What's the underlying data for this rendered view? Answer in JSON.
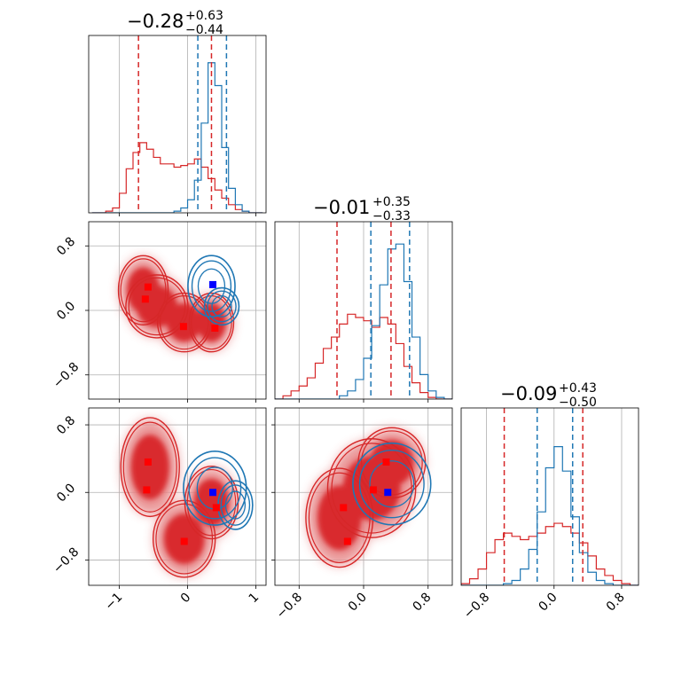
{
  "chart_data": {
    "type": "corner",
    "parameters": 3,
    "colors": {
      "red": "#d62728",
      "blue": "#1f77b4",
      "red_fill_light": "#e88b8c",
      "red_fill_dark": "#d92b2f",
      "grid": "#b0b0b0",
      "marker_red": "#ff0000",
      "marker_blue": "#0000ff"
    },
    "titles": [
      {
        "main": "−0.28",
        "plus": "+0.63",
        "minus": "−0.44"
      },
      {
        "main": "−0.01",
        "plus": "+0.35",
        "minus": "−0.33"
      },
      {
        "main": "−0.09",
        "plus": "+0.43",
        "minus": "−0.50"
      }
    ],
    "axes": [
      {
        "range": [
          -1.45,
          1.15
        ],
        "ticks": [
          -1,
          0,
          1
        ],
        "tick_labels": [
          "−1",
          "0",
          "1"
        ]
      },
      {
        "range": [
          -1.1,
          1.1
        ],
        "ticks": [
          -0.8,
          0.0,
          0.8
        ],
        "tick_labels": [
          "−0.8",
          "0.0",
          "0.8"
        ]
      },
      {
        "range": [
          -1.1,
          1.0
        ],
        "ticks": [
          -0.8,
          0.0,
          0.8
        ],
        "tick_labels": [
          "−0.8",
          "0.0",
          "0.8"
        ]
      }
    ],
    "quantile_lines": {
      "red": [
        [
          -0.72,
          0.35
        ],
        [
          -0.33,
          0.34
        ],
        [
          -0.59,
          0.34
        ]
      ],
      "blue": [
        [
          0.15,
          0.57
        ],
        [
          0.09,
          0.57
        ],
        [
          -0.2,
          0.22
        ]
      ]
    },
    "markers": {
      "p1_p0": {
        "red": [
          [
            -0.58,
            0.29
          ],
          [
            -0.62,
            0.14
          ],
          [
            -0.06,
            -0.2
          ],
          [
            0.4,
            -0.22
          ]
        ],
        "blue": [
          [
            0.37,
            0.32
          ]
        ]
      },
      "p2_p0": {
        "red": [
          [
            -0.58,
            0.36
          ],
          [
            -0.6,
            0.03
          ],
          [
            -0.05,
            -0.58
          ],
          [
            0.42,
            -0.18
          ]
        ],
        "blue": [
          [
            0.37,
            0.0
          ]
        ]
      },
      "p2_p1": {
        "red": [
          [
            -0.25,
            -0.18
          ],
          [
            -0.2,
            -0.58
          ],
          [
            0.12,
            0.03
          ],
          [
            0.28,
            0.36
          ]
        ],
        "blue": [
          [
            0.3,
            0.0
          ]
        ]
      }
    },
    "hist": {
      "p0": {
        "x": [
          -1.35,
          -1.25,
          -1.15,
          -1.05,
          -0.95,
          -0.85,
          -0.75,
          -0.65,
          -0.55,
          -0.45,
          -0.35,
          -0.25,
          -0.15,
          -0.05,
          0.05,
          0.15,
          0.25,
          0.35,
          0.45,
          0.55,
          0.65,
          0.75,
          0.85,
          0.95,
          1.05
        ],
        "red": [
          0.0,
          0.0,
          0.01,
          0.03,
          0.12,
          0.27,
          0.37,
          0.43,
          0.39,
          0.34,
          0.3,
          0.3,
          0.28,
          0.29,
          0.3,
          0.33,
          0.28,
          0.21,
          0.14,
          0.09,
          0.05,
          0.02,
          0.01,
          0.0,
          0.0
        ],
        "blue": [
          0.0,
          0.0,
          0.0,
          0.0,
          0.0,
          0.0,
          0.0,
          0.0,
          0.0,
          0.0,
          0.0,
          0.0,
          0.01,
          0.03,
          0.08,
          0.2,
          0.55,
          0.92,
          0.78,
          0.4,
          0.15,
          0.05,
          0.01,
          0.0,
          0.0
        ]
      },
      "p1": {
        "x": [
          -1.05,
          -0.95,
          -0.85,
          -0.75,
          -0.65,
          -0.55,
          -0.45,
          -0.35,
          -0.25,
          -0.15,
          -0.05,
          0.05,
          0.15,
          0.25,
          0.35,
          0.45,
          0.55,
          0.65,
          0.75,
          0.85,
          0.95,
          1.05
        ],
        "red": [
          0.0,
          0.02,
          0.05,
          0.08,
          0.13,
          0.22,
          0.31,
          0.38,
          0.46,
          0.52,
          0.5,
          0.48,
          0.44,
          0.5,
          0.46,
          0.34,
          0.2,
          0.1,
          0.04,
          0.01,
          0.0,
          0.0
        ],
        "blue": [
          0.0,
          0.0,
          0.0,
          0.0,
          0.0,
          0.0,
          0.0,
          0.0,
          0.02,
          0.05,
          0.12,
          0.25,
          0.45,
          0.7,
          0.92,
          0.95,
          0.72,
          0.38,
          0.15,
          0.05,
          0.01,
          0.0
        ]
      },
      "p2": {
        "x": [
          -1.05,
          -0.95,
          -0.85,
          -0.75,
          -0.65,
          -0.55,
          -0.45,
          -0.35,
          -0.25,
          -0.15,
          -0.05,
          0.05,
          0.15,
          0.25,
          0.35,
          0.45,
          0.55,
          0.65,
          0.75,
          0.85,
          0.95
        ],
        "red": [
          0.01,
          0.04,
          0.1,
          0.2,
          0.28,
          0.32,
          0.3,
          0.28,
          0.3,
          0.32,
          0.36,
          0.38,
          0.36,
          0.32,
          0.26,
          0.18,
          0.1,
          0.06,
          0.03,
          0.01,
          0.0
        ],
        "blue": [
          0.0,
          0.0,
          0.0,
          0.0,
          0.0,
          0.01,
          0.03,
          0.1,
          0.22,
          0.45,
          0.72,
          0.85,
          0.7,
          0.42,
          0.2,
          0.08,
          0.03,
          0.01,
          0.0,
          0.0,
          0.0
        ]
      }
    },
    "density_2d": {
      "p1_p0": {
        "red": [
          [
            -0.65,
            0.25,
            0.28,
            0.33
          ],
          [
            -0.45,
            0.05,
            0.35,
            0.3
          ],
          [
            -0.05,
            -0.15,
            0.3,
            0.28
          ],
          [
            0.35,
            -0.15,
            0.25,
            0.28
          ]
        ],
        "blue": [
          [
            0.35,
            0.3,
            0.3,
            0.33
          ],
          [
            0.5,
            0.05,
            0.22,
            0.2
          ]
        ]
      },
      "p2_p0": {
        "red": [
          [
            -0.55,
            0.3,
            0.33,
            0.45
          ],
          [
            -0.05,
            -0.55,
            0.35,
            0.35
          ],
          [
            0.35,
            -0.12,
            0.3,
            0.33
          ]
        ],
        "blue": [
          [
            0.4,
            0.05,
            0.4,
            0.38
          ],
          [
            0.7,
            -0.15,
            0.22,
            0.25
          ]
        ]
      },
      "p2_p1": {
        "red": [
          [
            -0.3,
            -0.3,
            0.32,
            0.45
          ],
          [
            0.1,
            0.05,
            0.42,
            0.45
          ],
          [
            0.35,
            0.35,
            0.32,
            0.32
          ]
        ],
        "blue": [
          [
            0.35,
            0.1,
            0.42,
            0.42
          ]
        ]
      }
    }
  }
}
